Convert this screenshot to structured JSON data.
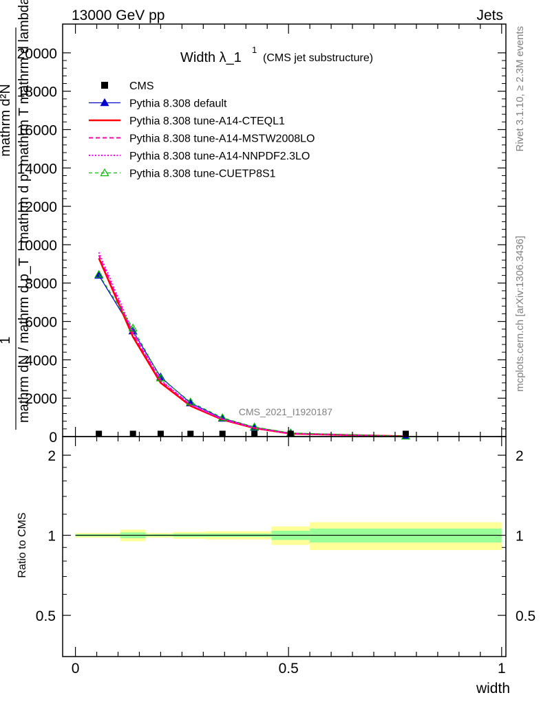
{
  "header": {
    "left": "13000 GeV pp",
    "right": "Jets"
  },
  "side_labels": {
    "rivet": "Rivet 3.1.10, ≥ 2.3M events",
    "mcplots": "mcplots.cern.ch [arXiv:1306.3436]"
  },
  "title": {
    "main": "Width λ_1",
    "sup": "1",
    "sub": "(CMS jet substructure)"
  },
  "analysis_id": "CMS_2021_I1920187",
  "ylabel_main": {
    "line1": "mathrm d²N",
    "line2": "mathrm d p_mathrm T mathrm d lambda",
    "frac_num": "1",
    "frac_den": "mathrm dN / mathrm d p_T"
  },
  "ylabel_ratio": "Ratio to CMS",
  "xlabel": "width",
  "chart_data": [
    {
      "type": "line",
      "panel": "main",
      "xlim": [
        -0.03,
        1.01
      ],
      "ylim": [
        0,
        21500
      ],
      "yticks": [
        0,
        2000,
        4000,
        6000,
        8000,
        10000,
        12000,
        14000,
        16000,
        18000,
        20000
      ],
      "ytick_labels": [
        "0",
        "2000",
        "4000",
        "6000",
        "8000",
        "10000",
        "12000",
        "14000",
        "16000",
        "18000",
        "20000"
      ],
      "legend_position": "top-left",
      "series": [
        {
          "name": "CMS",
          "style": "data",
          "color": "#000000",
          "x": [
            0.055,
            0.135,
            0.2,
            0.27,
            0.345,
            0.42,
            0.505,
            0.775
          ],
          "y": [
            40,
            40,
            35,
            30,
            25,
            20,
            10,
            5
          ]
        },
        {
          "name": "Pythia 8.308 default",
          "style": "solid-triangle",
          "color": "#0000cc",
          "x": [
            0.055,
            0.135,
            0.2,
            0.27,
            0.345,
            0.42,
            0.505,
            0.775
          ],
          "y": [
            8400,
            5500,
            3100,
            1750,
            950,
            480,
            180,
            20
          ]
        },
        {
          "name": "Pythia 8.308 tune-A14-CTEQL1",
          "style": "solid-thick",
          "color": "#ff0000",
          "x": [
            0.055,
            0.135,
            0.2,
            0.27,
            0.345,
            0.42,
            0.505,
            0.775
          ],
          "y": [
            9300,
            5200,
            2800,
            1600,
            880,
            440,
            150,
            15
          ]
        },
        {
          "name": "Pythia 8.308 tune-A14-MSTW2008LO",
          "style": "dashed",
          "color": "#ff00aa",
          "x": [
            0.055,
            0.135,
            0.2,
            0.27,
            0.345,
            0.42,
            0.505,
            0.775
          ],
          "y": [
            9450,
            5350,
            2900,
            1650,
            900,
            450,
            155,
            15
          ]
        },
        {
          "name": "Pythia 8.308 tune-A14-NNPDF2.3LO",
          "style": "dotted",
          "color": "#ff00ff",
          "x": [
            0.055,
            0.135,
            0.2,
            0.27,
            0.345,
            0.42,
            0.505,
            0.775
          ],
          "y": [
            9600,
            5450,
            2950,
            1680,
            910,
            455,
            158,
            15
          ]
        },
        {
          "name": "Pythia 8.308 tune-CUETP8S1",
          "style": "dashed-open-triangle",
          "color": "#00bb00",
          "x": [
            0.055,
            0.135,
            0.2,
            0.27,
            0.345,
            0.42,
            0.505,
            0.775
          ],
          "y": [
            8450,
            5650,
            3050,
            1800,
            980,
            500,
            190,
            20
          ]
        }
      ]
    },
    {
      "type": "area",
      "panel": "ratio",
      "xlim": [
        -0.03,
        1.01
      ],
      "ylim": [
        0.35,
        2.35
      ],
      "scale": "log",
      "yticks": [
        0.5,
        1,
        2
      ],
      "ytick_labels": [
        "0.5",
        "1",
        "2"
      ],
      "xticks": [
        0,
        0.5,
        1
      ],
      "xtick_labels": [
        "0",
        "0.5",
        "1"
      ],
      "bins": [
        {
          "x0": 0.0,
          "x1": 0.105,
          "stat": 0.01,
          "total": 0.02
        },
        {
          "x0": 0.105,
          "x1": 0.165,
          "stat": 0.025,
          "total": 0.05
        },
        {
          "x0": 0.165,
          "x1": 0.23,
          "stat": 0.01,
          "total": 0.02
        },
        {
          "x0": 0.23,
          "x1": 0.305,
          "stat": 0.015,
          "total": 0.03
        },
        {
          "x0": 0.305,
          "x1": 0.385,
          "stat": 0.015,
          "total": 0.035
        },
        {
          "x0": 0.385,
          "x1": 0.46,
          "stat": 0.015,
          "total": 0.035
        },
        {
          "x0": 0.46,
          "x1": 0.55,
          "stat": 0.04,
          "total": 0.08
        },
        {
          "x0": 0.55,
          "x1": 1.0,
          "stat": 0.06,
          "total": 0.12
        }
      ],
      "reference_line": 1,
      "colors": {
        "stat": "#99ff99",
        "total": "#ffff99"
      }
    }
  ]
}
